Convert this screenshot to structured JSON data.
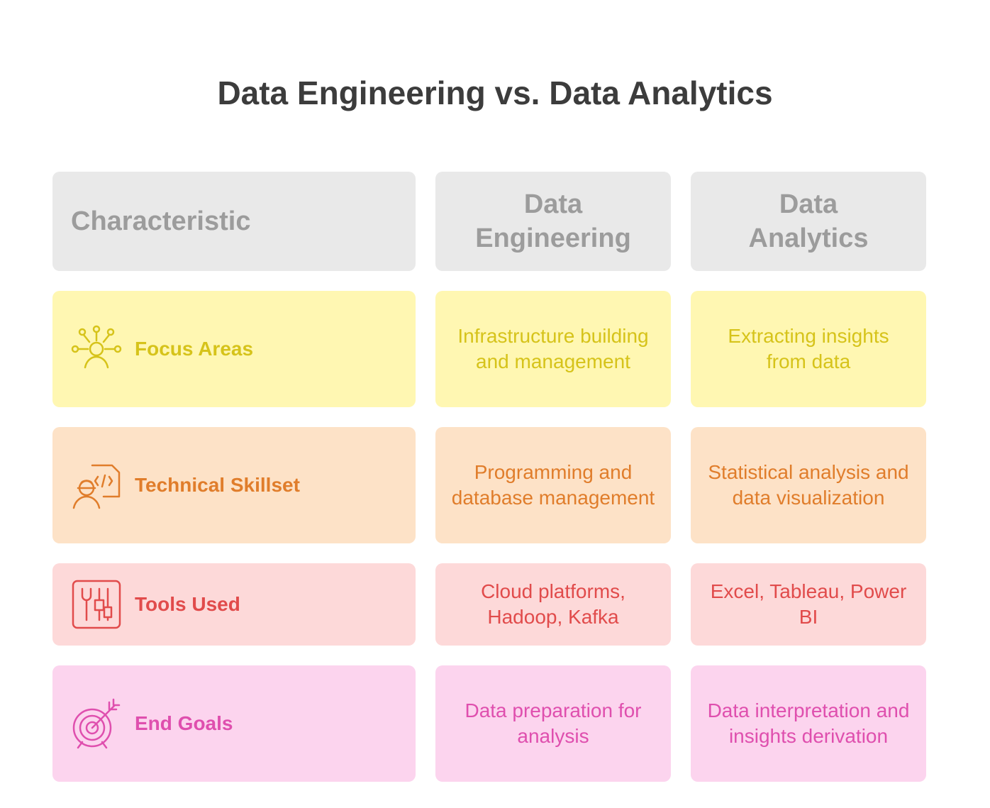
{
  "title": "Data Engineering vs. Data Analytics",
  "table": {
    "header": [
      "Characteristic",
      "Data Engineering",
      "Data Analytics"
    ],
    "rows": [
      {
        "label": "Focus Areas",
        "cells": [
          "Infrastructure building and management",
          "Extracting insights from data"
        ]
      },
      {
        "label": "Technical Skillset",
        "cells": [
          "Programming and database management",
          "Statistical analysis and data visualization"
        ]
      },
      {
        "label": "Tools Used",
        "cells": [
          "Cloud platforms, Hadoop, Kafka",
          "Excel, Tableau, Power BI"
        ]
      },
      {
        "label": "End Goals",
        "cells": [
          "Data preparation for analysis",
          "Data interpretation and insights derivation"
        ]
      }
    ]
  }
}
